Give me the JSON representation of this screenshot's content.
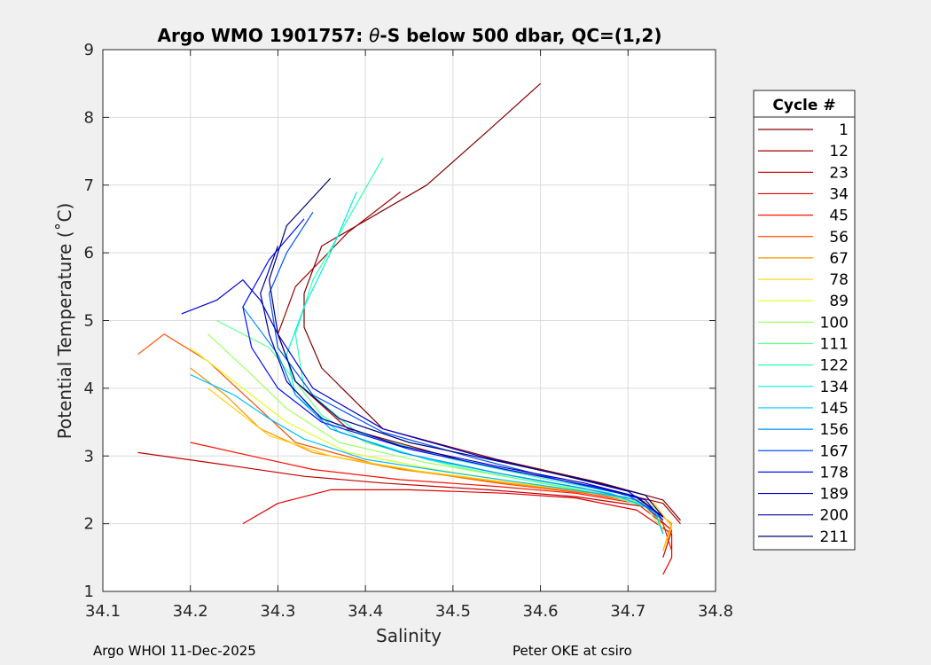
{
  "chart_data": {
    "type": "line",
    "title": "Argo WMO 1901757: θ-S below 500 dbar,  QC=(1,2)",
    "title_prefix": "Argo WMO 1901757: ",
    "title_theta": "θ",
    "title_suffix": "-S below 500 dbar,  QC=(1,2)",
    "xlabel": "Salinity",
    "ylabel": "Potential Temperature (˚C)",
    "xlim": [
      34.1,
      34.8
    ],
    "ylim": [
      1,
      9
    ],
    "xticks": [
      "34.1",
      "34.2",
      "34.3",
      "34.4",
      "34.5",
      "34.6",
      "34.7",
      "34.8"
    ],
    "yticks": [
      "1",
      "2",
      "3",
      "4",
      "5",
      "6",
      "7",
      "8",
      "9"
    ],
    "grid": true,
    "legend_title": "Cycle #",
    "legend_position": "right",
    "colormap": [
      "#00008f",
      "#0000ff",
      "#0080ff",
      "#00ffff",
      "#80ff80",
      "#ffff00",
      "#ff8000",
      "#ff0000",
      "#800000"
    ],
    "series": [
      {
        "name": "1",
        "color": "#800000",
        "x": [
          34.6,
          34.54,
          34.47,
          34.35,
          34.33,
          34.33,
          34.35,
          34.42,
          34.55,
          34.67,
          34.74,
          34.76
        ],
        "y": [
          8.5,
          7.8,
          7.0,
          6.1,
          5.4,
          4.9,
          4.3,
          3.4,
          2.95,
          2.6,
          2.35,
          2.05
        ]
      },
      {
        "name": "12",
        "color": "#a00000",
        "x": [
          34.44,
          34.38,
          34.32,
          34.3,
          34.32,
          34.38,
          34.52,
          34.66,
          34.74,
          34.76
        ],
        "y": [
          6.9,
          6.3,
          5.5,
          4.8,
          4.1,
          3.4,
          2.9,
          2.55,
          2.3,
          2.0
        ]
      },
      {
        "name": "23",
        "color": "#c00000",
        "x": [
          34.14,
          34.25,
          34.33,
          34.42,
          34.54,
          34.64,
          34.72,
          34.75,
          34.74
        ],
        "y": [
          3.05,
          2.85,
          2.7,
          2.6,
          2.5,
          2.4,
          2.25,
          1.9,
          1.5
        ]
      },
      {
        "name": "34",
        "color": "#e00000",
        "x": [
          34.26,
          34.3,
          34.36,
          34.45,
          34.56,
          34.64,
          34.71,
          34.75,
          34.75,
          34.74
        ],
        "y": [
          2.0,
          2.3,
          2.5,
          2.5,
          2.45,
          2.38,
          2.2,
          1.85,
          1.5,
          1.25
        ]
      },
      {
        "name": "45",
        "color": "#ff1000",
        "x": [
          34.2,
          34.27,
          34.34,
          34.44,
          34.55,
          34.64,
          34.71,
          34.74,
          34.75
        ],
        "y": [
          3.2,
          3.0,
          2.8,
          2.65,
          2.55,
          2.45,
          2.3,
          2.0,
          1.6
        ]
      },
      {
        "name": "56",
        "color": "#ff5000",
        "x": [
          34.14,
          34.17,
          34.22,
          34.27,
          34.32,
          34.42,
          34.55,
          34.65,
          34.72,
          34.75,
          34.74
        ],
        "y": [
          4.5,
          4.8,
          4.4,
          3.8,
          3.2,
          2.85,
          2.6,
          2.45,
          2.3,
          2.0,
          1.6
        ]
      },
      {
        "name": "67",
        "color": "#ff9000",
        "x": [
          34.2,
          34.24,
          34.28,
          34.34,
          34.44,
          34.56,
          34.66,
          34.72,
          34.75,
          34.74
        ],
        "y": [
          4.3,
          3.9,
          3.4,
          3.05,
          2.8,
          2.6,
          2.45,
          2.3,
          2.0,
          1.6
        ]
      },
      {
        "name": "78",
        "color": "#ffd000",
        "x": [
          34.22,
          34.25,
          34.29,
          34.36,
          34.46,
          34.57,
          34.67,
          34.73,
          34.75,
          34.74
        ],
        "y": [
          4.0,
          3.7,
          3.3,
          3.0,
          2.78,
          2.6,
          2.45,
          2.3,
          1.95,
          1.6
        ]
      },
      {
        "name": "89",
        "color": "#e0ff20",
        "x": [
          34.2,
          34.26,
          34.31,
          34.38,
          34.48,
          34.58,
          34.67,
          34.73,
          34.74
        ],
        "y": [
          4.6,
          4.0,
          3.5,
          3.05,
          2.8,
          2.6,
          2.45,
          2.25,
          1.9
        ]
      },
      {
        "name": "100",
        "color": "#a0ff60",
        "x": [
          34.22,
          34.27,
          34.31,
          34.37,
          34.47,
          34.58,
          34.67,
          34.72,
          34.74
        ],
        "y": [
          4.8,
          4.2,
          3.7,
          3.2,
          2.9,
          2.65,
          2.45,
          2.25,
          1.9
        ]
      },
      {
        "name": "111",
        "color": "#60ff90",
        "x": [
          34.23,
          34.29,
          34.32,
          34.35,
          34.4,
          34.5,
          34.6,
          34.68,
          34.73,
          34.74
        ],
        "y": [
          5.0,
          4.6,
          4.1,
          3.6,
          3.2,
          2.85,
          2.6,
          2.42,
          2.2,
          1.85
        ]
      },
      {
        "name": "122",
        "color": "#30ffb0",
        "x": [
          34.42,
          34.38,
          34.34,
          34.32,
          34.33,
          34.39,
          34.5,
          34.61,
          34.69,
          34.73,
          34.74
        ],
        "y": [
          7.4,
          6.5,
          5.6,
          4.8,
          4.0,
          3.35,
          2.95,
          2.65,
          2.45,
          2.2,
          1.85
        ]
      },
      {
        "name": "134",
        "color": "#00f0e0",
        "x": [
          34.39,
          34.36,
          34.33,
          34.31,
          34.32,
          34.37,
          34.47,
          34.59,
          34.68,
          34.73,
          34.74
        ],
        "y": [
          6.9,
          6.0,
          5.2,
          4.5,
          3.9,
          3.35,
          2.95,
          2.65,
          2.45,
          2.2,
          1.85
        ]
      },
      {
        "name": "145",
        "color": "#00c0ff",
        "x": [
          34.2,
          34.25,
          34.29,
          34.33,
          34.4,
          34.5,
          34.61,
          34.69,
          34.73,
          34.74
        ],
        "y": [
          4.2,
          3.9,
          3.55,
          3.25,
          2.95,
          2.75,
          2.55,
          2.4,
          2.2,
          1.85
        ]
      },
      {
        "name": "156",
        "color": "#0090ff",
        "x": [
          34.26,
          34.3,
          34.32,
          34.36,
          34.44,
          34.55,
          34.65,
          34.71,
          34.74
        ],
        "y": [
          5.2,
          4.5,
          3.9,
          3.4,
          3.05,
          2.75,
          2.52,
          2.35,
          2.05
        ]
      },
      {
        "name": "167",
        "color": "#0050ff",
        "x": [
          34.34,
          34.31,
          34.29,
          34.3,
          34.34,
          34.42,
          34.53,
          34.63,
          34.7,
          34.74
        ],
        "y": [
          6.6,
          6.0,
          5.4,
          4.6,
          3.9,
          3.35,
          2.95,
          2.62,
          2.42,
          2.1
        ]
      },
      {
        "name": "178",
        "color": "#0010ff",
        "x": [
          34.33,
          34.29,
          34.26,
          34.27,
          34.3,
          34.35,
          34.45,
          34.56,
          34.66,
          34.72,
          34.74
        ],
        "y": [
          6.5,
          5.9,
          5.2,
          4.6,
          4.0,
          3.5,
          3.1,
          2.8,
          2.55,
          2.35,
          2.05
        ]
      },
      {
        "name": "189",
        "color": "#0000d0",
        "x": [
          34.19,
          34.23,
          34.26,
          34.28,
          34.3,
          34.34,
          34.42,
          34.53,
          34.63,
          34.7,
          34.74
        ],
        "y": [
          5.1,
          5.3,
          5.6,
          5.3,
          4.8,
          4.0,
          3.4,
          3.0,
          2.7,
          2.48,
          2.1
        ]
      },
      {
        "name": "200",
        "color": "#0000a0",
        "x": [
          34.3,
          34.28,
          34.29,
          34.31,
          34.35,
          34.44,
          34.55,
          34.65,
          34.71,
          34.74
        ],
        "y": [
          6.1,
          5.4,
          4.8,
          4.1,
          3.55,
          3.15,
          2.85,
          2.6,
          2.4,
          2.1
        ]
      },
      {
        "name": "211",
        "color": "#000070",
        "x": [
          34.36,
          34.31,
          34.29,
          34.3,
          34.32,
          34.37,
          34.45,
          34.56,
          34.66,
          34.72,
          34.74
        ],
        "y": [
          7.1,
          6.4,
          5.6,
          4.8,
          4.1,
          3.55,
          3.2,
          2.9,
          2.62,
          2.42,
          2.1
        ]
      }
    ]
  },
  "footer": {
    "left": "Argo WHOI 11-Dec-2025",
    "right": "Peter OKE at csiro"
  }
}
